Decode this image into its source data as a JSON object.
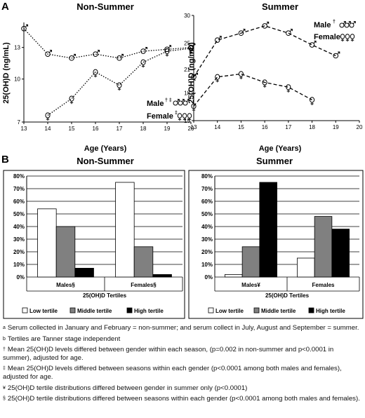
{
  "panel_a": {
    "label": "A",
    "ylabel": "25(OH)D (ng/mL)",
    "xlabel": "Age (Years)",
    "x_ticks": [
      13,
      14,
      15,
      16,
      17,
      18,
      19,
      20
    ]
  },
  "panel_b": {
    "label": "B",
    "legend": [
      "Low tertile",
      "Middle tertile",
      "High tertile"
    ]
  },
  "colors": {
    "low_tertile": "#ffffff",
    "middle_tertile": "#808080",
    "high_tertile": "#000000",
    "axis": "#000000"
  },
  "chart_data": [
    {
      "id": "a-nonsummer",
      "type": "line",
      "title": "Non-Summer",
      "xlabel": "Age (Years)",
      "ylabel": "25(OH)D (ng/mL)",
      "scale": "log",
      "ylim": [
        7,
        16
      ],
      "yticks": [
        7,
        10,
        13
      ],
      "xlim": [
        13,
        20
      ],
      "x": [
        13,
        14,
        15,
        16,
        17,
        18,
        19,
        20
      ],
      "series": [
        {
          "name": "Male",
          "marks": "† ‡",
          "style": "dotted",
          "symbol": "male",
          "x": [
            13,
            14,
            15,
            16,
            17,
            18,
            19,
            20
          ],
          "values": [
            15.2,
            12.3,
            11.9,
            12.3,
            11.9,
            12.6,
            12.8,
            13.0
          ]
        },
        {
          "name": "Female",
          "marks": "‡",
          "style": "dotted",
          "symbol": "female",
          "x": [
            14,
            15,
            16,
            17,
            18,
            19,
            20
          ],
          "values": [
            7.4,
            8.5,
            10.6,
            9.5,
            11.5,
            12.6,
            12.9
          ]
        }
      ],
      "legend_position": "bottom-right"
    },
    {
      "id": "a-summer",
      "type": "line",
      "title": "Summer",
      "xlabel": "Age (Years)",
      "ylabel": "25(OH)D (ng/mL)",
      "scale": "log",
      "ylim": [
        15,
        30
      ],
      "yticks": [
        15,
        18,
        21,
        25,
        30
      ],
      "xlim": [
        13,
        20
      ],
      "x": [
        13,
        14,
        15,
        16,
        17,
        18,
        19,
        20
      ],
      "series": [
        {
          "name": "Male",
          "marks": "†",
          "style": "dashed",
          "symbol": "male",
          "x": [
            13,
            14,
            15,
            16,
            17,
            18,
            19
          ],
          "values": [
            20.0,
            25.5,
            26.7,
            28.0,
            26.7,
            24.7,
            23.0
          ]
        },
        {
          "name": "Female",
          "marks": "",
          "style": "dashed",
          "symbol": "female",
          "x": [
            13,
            14,
            15,
            16,
            17,
            18
          ],
          "values": [
            16.5,
            20.0,
            20.4,
            19.3,
            18.7,
            17.2
          ]
        }
      ],
      "legend_position": "top-right"
    },
    {
      "id": "b-nonsummer",
      "type": "bar",
      "title": "Non-Summer",
      "xlabel": "25(OH)D Tertiles",
      "ylim": [
        0,
        80
      ],
      "yticks": [
        0,
        10,
        20,
        30,
        40,
        50,
        60,
        70,
        80
      ],
      "ytick_suffix": "%",
      "categories": [
        "Males§",
        "Females§"
      ],
      "series": [
        {
          "name": "Low tertile",
          "values": [
            54,
            75
          ]
        },
        {
          "name": "Middle tertile",
          "values": [
            40,
            24
          ]
        },
        {
          "name": "High tertile",
          "values": [
            7,
            2
          ]
        }
      ],
      "legend_position": "bottom"
    },
    {
      "id": "b-summer",
      "type": "bar",
      "title": "Summer",
      "xlabel": "25(OH)D Tertiles",
      "ylim": [
        0,
        80
      ],
      "yticks": [
        0,
        10,
        20,
        30,
        40,
        50,
        60,
        70,
        80
      ],
      "ytick_suffix": "%",
      "categories": [
        "Males¥",
        "Females"
      ],
      "series": [
        {
          "name": "Low tertile",
          "values": [
            2,
            15
          ]
        },
        {
          "name": "Middle tertile",
          "values": [
            24,
            48
          ]
        },
        {
          "name": "High tertile",
          "values": [
            75,
            38
          ]
        }
      ],
      "legend_position": "bottom"
    }
  ],
  "footnotes": [
    {
      "mark": "a",
      "text": "Serum collected in January and February = non-summer; and serum collect in July, August and September = summer."
    },
    {
      "mark": "b",
      "text": "Tertiles are Tanner stage independent"
    },
    {
      "mark": "†",
      "text": "Mean 25(OH)D levels differed between gender within each season, (p=0.002 in non-summer and p<0.0001 in summer), adjusted for age."
    },
    {
      "mark": "‡",
      "text": "Mean 25(OH)D levels differed between seasons within each gender (p<0.0001 among both males and females), adjusted for age."
    },
    {
      "mark": "¥",
      "text": "25(OH)D tertile distributions differed between gender in summer only (p<0.0001)"
    },
    {
      "mark": "§",
      "text": "25(OH)D tertile distributions differed between seasons within each gender (p<0.0001 among both males and females)."
    }
  ]
}
